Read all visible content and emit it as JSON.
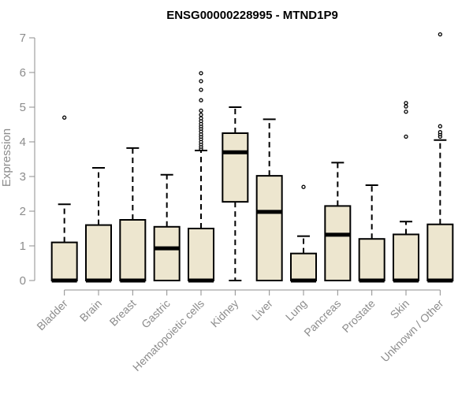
{
  "chart_data": {
    "type": "boxplot",
    "title": "ENSG00000228995 - MTND1P9",
    "ylabel": "Expression",
    "xlabel": "",
    "ylim": [
      0,
      7.2
    ],
    "y_ticks": [
      0,
      1,
      2,
      3,
      4,
      5,
      6,
      7
    ],
    "grid": false,
    "colors": {
      "box_fill": "#ede6cf",
      "box_stroke": "#000000",
      "axis": "#8c8c8c"
    },
    "categories": [
      "Bladder",
      "Brain",
      "Breast",
      "Gastric",
      "Hematopoietic cells",
      "Kidney",
      "Liver",
      "Lung",
      "Pancreas",
      "Prostate",
      "Skin",
      "Unknown / Other"
    ],
    "boxes": [
      {
        "q1": 0,
        "median": 0,
        "q3": 1.1,
        "whisker_low": 0,
        "whisker_high": 2.2,
        "outliers": [
          4.7
        ]
      },
      {
        "q1": 0,
        "median": 0,
        "q3": 1.6,
        "whisker_low": 0,
        "whisker_high": 3.25,
        "outliers": []
      },
      {
        "q1": 0,
        "median": 0,
        "q3": 1.75,
        "whisker_low": 0,
        "whisker_high": 3.82,
        "outliers": []
      },
      {
        "q1": 0,
        "median": 0.93,
        "q3": 1.55,
        "whisker_low": 0,
        "whisker_high": 3.05,
        "outliers": []
      },
      {
        "q1": 0,
        "median": 0,
        "q3": 1.5,
        "whisker_low": 0,
        "whisker_high": 3.75,
        "outliers": [
          3.8,
          3.86,
          3.93,
          4.0,
          4.08,
          4.15,
          4.22,
          4.3,
          4.38,
          4.45,
          4.52,
          4.6,
          4.68,
          4.78,
          4.9,
          5.2,
          5.5,
          5.75,
          5.98
        ]
      },
      {
        "q1": 2.27,
        "median": 3.7,
        "q3": 4.25,
        "whisker_low": 0,
        "whisker_high": 5.0,
        "outliers": []
      },
      {
        "q1": 0,
        "median": 1.98,
        "q3": 3.02,
        "whisker_low": 0,
        "whisker_high": 4.65,
        "outliers": []
      },
      {
        "q1": 0,
        "median": 0,
        "q3": 0.78,
        "whisker_low": 0,
        "whisker_high": 1.28,
        "outliers": [
          2.7
        ]
      },
      {
        "q1": 0,
        "median": 1.32,
        "q3": 2.15,
        "whisker_low": 0,
        "whisker_high": 3.4,
        "outliers": []
      },
      {
        "q1": 0,
        "median": 0,
        "q3": 1.2,
        "whisker_low": 0,
        "whisker_high": 2.75,
        "outliers": []
      },
      {
        "q1": 0,
        "median": 0,
        "q3": 1.33,
        "whisker_low": 0,
        "whisker_high": 1.7,
        "outliers": [
          4.15,
          4.87,
          5.02,
          5.12
        ]
      },
      {
        "q1": 0,
        "median": 0,
        "q3": 1.62,
        "whisker_low": 0,
        "whisker_high": 4.05,
        "outliers": [
          4.15,
          4.22,
          4.28,
          4.45,
          7.1
        ]
      }
    ]
  }
}
